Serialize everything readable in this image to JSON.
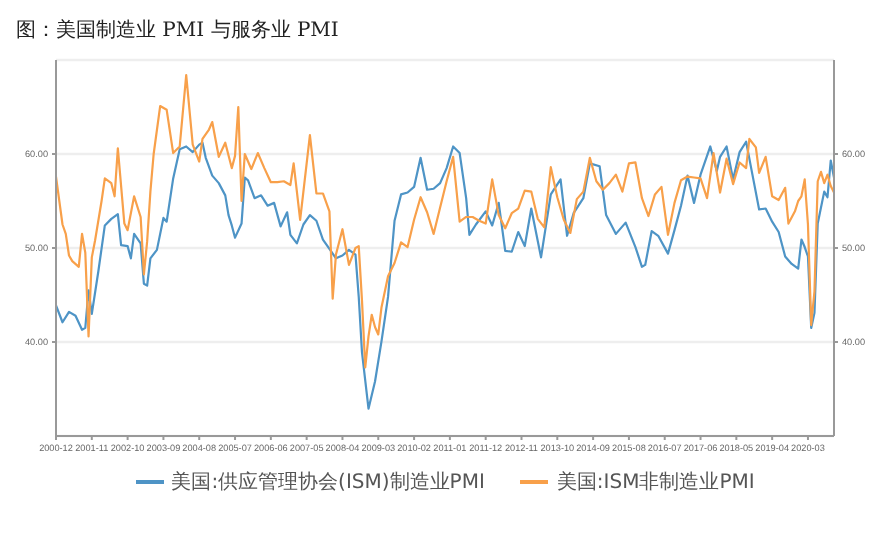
{
  "chart_data": {
    "type": "line",
    "title": "图：美国制造业 PMI 与服务业 PMI",
    "xlim": [
      "2000-12",
      "2020-11"
    ],
    "xticks": [
      "2000-12",
      "2001-11",
      "2002-10",
      "2003-09",
      "2004-08",
      "2005-07",
      "2006-06",
      "2007-05",
      "2008-04",
      "2009-03",
      "2010-02",
      "2011-01",
      "2011-12",
      "2012-11",
      "2013-10",
      "2014-09",
      "2015-08",
      "2016-07",
      "2017-06",
      "2018-05",
      "2019-04",
      "2020-03"
    ],
    "ylim": [
      30,
      70
    ],
    "yticks": [
      {
        "value": 40,
        "label": "40.00"
      },
      {
        "value": 50,
        "label": "50.00"
      },
      {
        "value": 60,
        "label": "60.00"
      }
    ],
    "y2lim": [
      30,
      70
    ],
    "y2ticks": [
      {
        "value": 40,
        "label": "40.00"
      },
      {
        "value": 50,
        "label": "50.00"
      },
      {
        "value": 60,
        "label": "60.00"
      }
    ],
    "grid": "y",
    "legend": "bottom",
    "marker": "none",
    "line_style": "solid",
    "series": [
      {
        "name": "美国:供应管理协会(ISM)制造业PMI",
        "color": "#4e94c6",
        "x": [
          "2000-12",
          "2001-02",
          "2001-04",
          "2001-06",
          "2001-08",
          "2001-09",
          "2001-10",
          "2001-11",
          "2002-01",
          "2002-03",
          "2002-05",
          "2002-07",
          "2002-08",
          "2002-10",
          "2002-11",
          "2002-12",
          "2003-02",
          "2003-03",
          "2003-04",
          "2003-05",
          "2003-07",
          "2003-09",
          "2003-10",
          "2003-12",
          "2004-02",
          "2004-04",
          "2004-06",
          "2004-08",
          "2004-09",
          "2004-10",
          "2004-12",
          "2005-02",
          "2005-04",
          "2005-05",
          "2005-06",
          "2005-07",
          "2005-09",
          "2005-10",
          "2005-11",
          "2006-01",
          "2006-03",
          "2006-05",
          "2006-07",
          "2006-09",
          "2006-11",
          "2006-12",
          "2007-02",
          "2007-04",
          "2007-06",
          "2007-08",
          "2007-10",
          "2007-12",
          "2008-02",
          "2008-04",
          "2008-06",
          "2008-08",
          "2008-09",
          "2008-10",
          "2008-12",
          "2009-02",
          "2009-04",
          "2009-06",
          "2009-08",
          "2009-10",
          "2009-12",
          "2010-02",
          "2010-04",
          "2010-06",
          "2010-08",
          "2010-10",
          "2010-12",
          "2011-02",
          "2011-04",
          "2011-06",
          "2011-07",
          "2011-09",
          "2011-12",
          "2012-02",
          "2012-04",
          "2012-06",
          "2012-08",
          "2012-10",
          "2012-12",
          "2013-02",
          "2013-05",
          "2013-08",
          "2013-11",
          "2014-01",
          "2014-03",
          "2014-06",
          "2014-08",
          "2014-11",
          "2015-01",
          "2015-04",
          "2015-07",
          "2015-10",
          "2015-12",
          "2016-01",
          "2016-03",
          "2016-05",
          "2016-08",
          "2016-10",
          "2016-12",
          "2017-02",
          "2017-04",
          "2017-06",
          "2017-09",
          "2017-11",
          "2017-12",
          "2018-02",
          "2018-04",
          "2018-06",
          "2018-08",
          "2018-10",
          "2018-12",
          "2019-02",
          "2019-04",
          "2019-06",
          "2019-08",
          "2019-10",
          "2019-12",
          "2020-01",
          "2020-02",
          "2020-03",
          "2020-04",
          "2020-05",
          "2020-06",
          "2020-08",
          "2020-09",
          "2020-10",
          "2020-11"
        ],
        "values": [
          43.9,
          42.1,
          43.2,
          42.8,
          41.3,
          41.5,
          45.5,
          43,
          47.5,
          52.4,
          53.1,
          53.6,
          50.3,
          50.2,
          48.9,
          51.5,
          50.5,
          46.2,
          46,
          48.9,
          49.8,
          53.2,
          52.8,
          57.4,
          60.5,
          60.8,
          60.2,
          61,
          61.2,
          59.6,
          57.7,
          56.9,
          55.6,
          53.5,
          52.4,
          51.1,
          52.6,
          57.5,
          57.2,
          55.3,
          55.6,
          54.5,
          54.8,
          52.3,
          53.8,
          51.4,
          50.5,
          52.5,
          53.5,
          52.9,
          50.9,
          49.9,
          48.9,
          49.2,
          49.8,
          49.3,
          44.8,
          38.9,
          32.9,
          35.8,
          40.1,
          44.8,
          52.9,
          55.7,
          55.9,
          56.5,
          59.6,
          56.2,
          56.3,
          56.9,
          58.5,
          60.8,
          60.1,
          55.3,
          51.4,
          52.5,
          53.9,
          52.4,
          54.8,
          49.7,
          49.6,
          51.7,
          50.2,
          54.2,
          49,
          55.7,
          57.3,
          51.3,
          53.7,
          55.3,
          59,
          58.7,
          53.5,
          51.5,
          52.7,
          50.1,
          48,
          48.2,
          51.8,
          51.3,
          49.4,
          51.9,
          54.5,
          57.7,
          54.8,
          57.8,
          60.8,
          58.2,
          59.7,
          60.8,
          57.3,
          60.2,
          61.3,
          57.7,
          54.1,
          54.2,
          52.8,
          51.7,
          49.1,
          48.3,
          47.8,
          50.9,
          50.1,
          49.1,
          41.5,
          43.1,
          52.6,
          56,
          55.4,
          59.3,
          57.5
        ]
      },
      {
        "name": "美国:ISM非制造业PMI",
        "color": "#f8a04a",
        "axis": "y2",
        "x": [
          "2000-12",
          "2001-02",
          "2001-03",
          "2001-04",
          "2001-05",
          "2001-07",
          "2001-08",
          "2001-09",
          "2001-10",
          "2001-11",
          "2001-12",
          "2002-02",
          "2002-03",
          "2002-05",
          "2002-06",
          "2002-07",
          "2002-09",
          "2002-10",
          "2002-12",
          "2003-02",
          "2003-03",
          "2003-04",
          "2003-05",
          "2003-06",
          "2003-08",
          "2003-10",
          "2003-12",
          "2004-02",
          "2004-04",
          "2004-06",
          "2004-08",
          "2004-09",
          "2004-11",
          "2004-12",
          "2005-02",
          "2005-04",
          "2005-06",
          "2005-07",
          "2005-08",
          "2005-09",
          "2005-10",
          "2005-12",
          "2006-02",
          "2006-04",
          "2006-06",
          "2006-08",
          "2006-10",
          "2006-12",
          "2007-01",
          "2007-03",
          "2007-06",
          "2007-08",
          "2007-10",
          "2007-12",
          "2008-01",
          "2008-02",
          "2008-04",
          "2008-06",
          "2008-08",
          "2008-09",
          "2008-10",
          "2008-11",
          "2008-12",
          "2009-01",
          "2009-02",
          "2009-03",
          "2009-04",
          "2009-06",
          "2009-08",
          "2009-10",
          "2009-12",
          "2010-02",
          "2010-04",
          "2010-06",
          "2010-08",
          "2010-10",
          "2010-12",
          "2011-02",
          "2011-04",
          "2011-06",
          "2011-08",
          "2011-10",
          "2011-12",
          "2012-02",
          "2012-04",
          "2012-06",
          "2012-08",
          "2012-10",
          "2012-12",
          "2013-02",
          "2013-04",
          "2013-06",
          "2013-08",
          "2013-10",
          "2013-12",
          "2014-02",
          "2014-04",
          "2014-06",
          "2014-08",
          "2014-10",
          "2014-12",
          "2015-02",
          "2015-04",
          "2015-06",
          "2015-08",
          "2015-10",
          "2015-12",
          "2016-02",
          "2016-04",
          "2016-06",
          "2016-08",
          "2016-10",
          "2016-12",
          "2017-02",
          "2017-04",
          "2017-06",
          "2017-08",
          "2017-10",
          "2017-12",
          "2018-02",
          "2018-04",
          "2018-06",
          "2018-08",
          "2018-09",
          "2018-11",
          "2018-12",
          "2019-02",
          "2019-04",
          "2019-06",
          "2019-08",
          "2019-09",
          "2019-11",
          "2019-12",
          "2020-01",
          "2020-02",
          "2020-03",
          "2020-04",
          "2020-05",
          "2020-06",
          "2020-07",
          "2020-08",
          "2020-09",
          "2020-10",
          "2020-11"
        ],
        "values": [
          57.6,
          52.5,
          51.5,
          49.2,
          48.6,
          48,
          51.5,
          49.5,
          40.6,
          49,
          50.8,
          55,
          57.4,
          56.9,
          55.5,
          60.6,
          52.6,
          51.9,
          55.5,
          53.3,
          47.2,
          50.7,
          56,
          60,
          65.1,
          64.7,
          60.1,
          60.8,
          68.4,
          61,
          59.2,
          61.6,
          62.6,
          63.4,
          59.7,
          61.2,
          58.5,
          59.8,
          65,
          55,
          60,
          58.4,
          60.1,
          58.5,
          57,
          57,
          57.1,
          56.7,
          59,
          53,
          62,
          55.8,
          55.8,
          53.9,
          44.6,
          49.3,
          52,
          48.2,
          50,
          50.2,
          44.4,
          37.3,
          40.6,
          42.9,
          41.6,
          40.8,
          43.7,
          47,
          48.4,
          50.6,
          50.1,
          53,
          55.4,
          53.8,
          51.5,
          54.3,
          57.1,
          59.7,
          52.8,
          53.3,
          53.3,
          52.9,
          52.6,
          57.3,
          53.5,
          52.1,
          53.7,
          54.2,
          56.1,
          56,
          53.1,
          52.2,
          58.6,
          55.4,
          53,
          51.6,
          55.2,
          56,
          59.6,
          57.1,
          56.2,
          56.9,
          57.8,
          56,
          59,
          59.1,
          55.3,
          53.4,
          55.7,
          56.5,
          51.4,
          54.8,
          57.2,
          57.6,
          57.5,
          57.4,
          55.3,
          60.1,
          55.9,
          59.5,
          56.8,
          59.1,
          58.5,
          61.6,
          60.7,
          58,
          59.7,
          55.5,
          55.1,
          56.4,
          52.6,
          53.9,
          55,
          55.5,
          57.3,
          52.5,
          41.8,
          45.4,
          57.1,
          58.1,
          56.9,
          57.8,
          56.6,
          55.9
        ]
      }
    ]
  }
}
